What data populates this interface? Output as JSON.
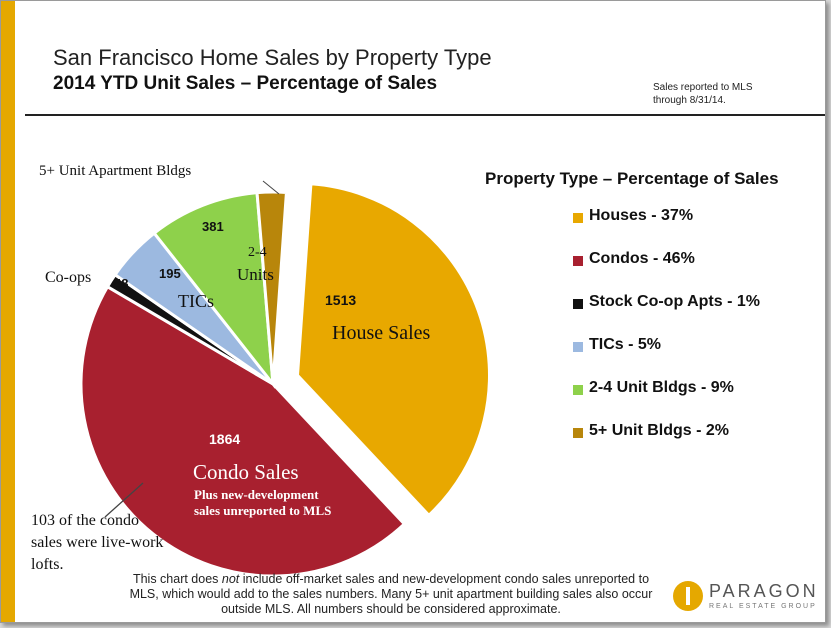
{
  "header": {
    "title": "San Francisco Home Sales by Property Type",
    "subtitle": "2014 YTD Unit Sales – Percentage of Sales",
    "note_line1": "Sales reported to MLS",
    "note_line2": "through 8/31/14."
  },
  "colors": {
    "accent_bar": "#e5a800",
    "houses": "#e8a800",
    "condos": "#a8202f",
    "coops": "#111111",
    "tics": "#9cb9e0",
    "units_2_4": "#8ed14b",
    "units_5plus": "#b8860b"
  },
  "chart_data": {
    "type": "pie",
    "slices": [
      {
        "key": "houses",
        "value": 1513,
        "value_label": "1513",
        "name": "House Sales",
        "color": "#e8a800",
        "exploded": true
      },
      {
        "key": "condos",
        "value": 1864,
        "value_label": "1864",
        "name": "Condo Sales",
        "color": "#a8202f",
        "exploded": false
      },
      {
        "key": "coops",
        "value": 48,
        "value_label": "48",
        "name": "Co-ops",
        "color": "#111111",
        "exploded": false
      },
      {
        "key": "tics",
        "value": 195,
        "value_label": "195",
        "name": "TICs",
        "color": "#9cb9e0",
        "exploded": false
      },
      {
        "key": "units_2_4",
        "value": 381,
        "value_label": "381",
        "name": "2-4 Units",
        "color": "#8ed14b",
        "exploded": false
      },
      {
        "key": "units_5plus",
        "value": 100,
        "value_label": "",
        "name": "5+ Unit Apartment Bldgs",
        "color": "#b8860b",
        "exploded": false
      }
    ],
    "legend": {
      "title": "Property Type – Percentage of Sales",
      "entries": [
        {
          "label": "Houses - 37%",
          "color": "#e8a800"
        },
        {
          "label": "Condos - 46%",
          "color": "#a8202f"
        },
        {
          "label": "Stock Co-op Apts - 1%",
          "color": "#111111"
        },
        {
          "label": "TICs - 5%",
          "color": "#9cb9e0"
        },
        {
          "label": "2-4 Unit Bldgs - 9%",
          "color": "#8ed14b"
        },
        {
          "label": "5+ Unit Bldgs - 2%",
          "color": "#b8860b"
        }
      ]
    },
    "annotations": {
      "condo_sub_line1": "Plus new-development",
      "condo_sub_line2": "sales unreported to MLS",
      "units_2_4_line1": "2-4",
      "units_2_4_line2": "Units",
      "live_work_line1": "103 of the condo",
      "live_work_line2": "sales were live-work",
      "live_work_line3": "lofts."
    }
  },
  "footer": {
    "pre": "This chart does ",
    "emph": "not",
    "post": " include off-market sales and new-development condo sales unreported to MLS, which would add to the sales numbers. Many 5+ unit apartment building sales also occur outside MLS. All numbers should be considered approximate."
  },
  "logo": {
    "name": "PARAGON",
    "tagline": "REAL ESTATE GROUP"
  }
}
